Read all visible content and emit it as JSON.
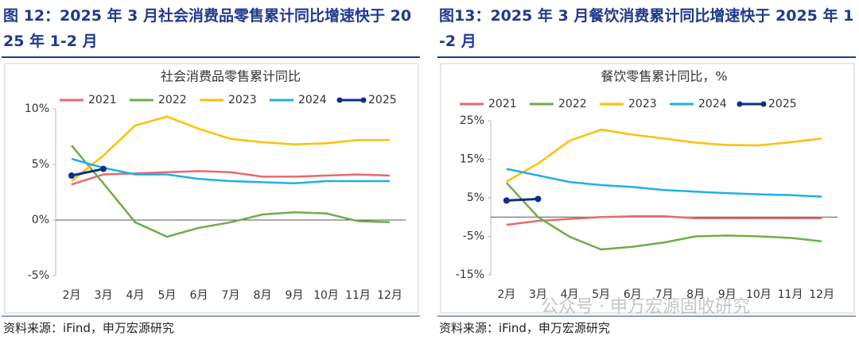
{
  "chart_data": [
    {
      "type": "line",
      "figure_title": "图 12：2025 年 3 月社会消费品零售累计同比增速快于 2025 年 1-2 月",
      "title": "社会消费品零售累计同比",
      "source": "资料来源：iFind，申万宏源研究",
      "categories": [
        "2月",
        "3月",
        "4月",
        "5月",
        "6月",
        "7月",
        "8月",
        "9月",
        "10月",
        "11月",
        "12月"
      ],
      "ylim": [
        -5,
        10
      ],
      "yticks": [
        {
          "value": -5,
          "label": "-5%"
        },
        {
          "value": 0,
          "label": "0%"
        },
        {
          "value": 5,
          "label": "5%"
        },
        {
          "value": 10,
          "label": "10%"
        }
      ],
      "series": [
        {
          "name": "2021",
          "color": "#e8696b",
          "values": [
            3.2,
            4.1,
            4.2,
            4.3,
            4.4,
            4.3,
            3.9,
            3.9,
            4.0,
            4.1,
            4.0
          ]
        },
        {
          "name": "2022",
          "color": "#70ad47",
          "values": [
            6.7,
            3.3,
            -0.2,
            -1.5,
            -0.7,
            -0.2,
            0.5,
            0.7,
            0.6,
            -0.1,
            -0.2
          ]
        },
        {
          "name": "2023",
          "color": "#ffc000",
          "values": [
            3.5,
            5.8,
            8.5,
            9.3,
            8.2,
            7.3,
            7.0,
            6.8,
            6.9,
            7.2,
            7.2
          ]
        },
        {
          "name": "2024",
          "color": "#1fb0e6",
          "values": [
            5.5,
            4.7,
            4.1,
            4.1,
            3.7,
            3.5,
            3.4,
            3.3,
            3.5,
            3.5,
            3.5
          ]
        },
        {
          "name": "2025",
          "color": "#0a2f8a",
          "markers": true,
          "values": [
            4.0,
            4.6,
            null,
            null,
            null,
            null,
            null,
            null,
            null,
            null,
            null
          ]
        }
      ]
    },
    {
      "type": "line",
      "figure_title": "图13：2025 年 3 月餐饮消费累计同比增速快于 2025 年 1-2 月",
      "title": "餐饮零售累计同比，%",
      "source": "资料来源：iFind，申万宏源研究",
      "categories": [
        "2月",
        "3月",
        "4月",
        "5月",
        "6月",
        "7月",
        "8月",
        "9月",
        "10月",
        "11月",
        "12月"
      ],
      "ylim": [
        -15,
        25
      ],
      "yticks": [
        {
          "value": -15,
          "label": "-15%"
        },
        {
          "value": -5,
          "label": "-5%"
        },
        {
          "value": 5,
          "label": "5%"
        },
        {
          "value": 15,
          "label": "15%"
        },
        {
          "value": 25,
          "label": "25%"
        }
      ],
      "series": [
        {
          "name": "2021",
          "color": "#e8696b",
          "values": [
            -2.0,
            -1.0,
            -0.5,
            0.0,
            0.2,
            0.2,
            -0.3,
            -0.3,
            -0.3,
            -0.3,
            -0.3
          ]
        },
        {
          "name": "2022",
          "color": "#70ad47",
          "values": [
            8.9,
            0.0,
            -5.1,
            -8.4,
            -7.7,
            -6.6,
            -5.0,
            -4.8,
            -5.0,
            -5.4,
            -6.3
          ]
        },
        {
          "name": "2023",
          "color": "#ffc000",
          "values": [
            9.2,
            13.9,
            19.8,
            22.7,
            21.4,
            20.4,
            19.3,
            18.7,
            18.6,
            19.4,
            20.4
          ]
        },
        {
          "name": "2024",
          "color": "#1fb0e6",
          "values": [
            12.5,
            10.8,
            9.1,
            8.3,
            7.8,
            7.0,
            6.6,
            6.2,
            5.9,
            5.7,
            5.3
          ]
        },
        {
          "name": "2025",
          "color": "#0a2f8a",
          "markers": true,
          "values": [
            4.3,
            4.7,
            null,
            null,
            null,
            null,
            null,
            null,
            null,
            null,
            null
          ]
        }
      ]
    }
  ],
  "watermark": "公众号 · 申万宏源固收研究"
}
